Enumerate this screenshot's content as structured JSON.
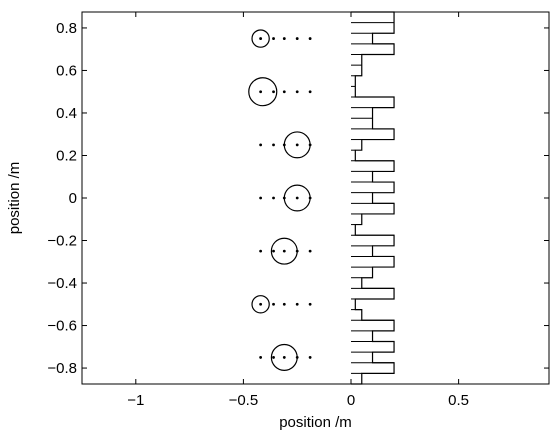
{
  "chart_data": {
    "type": "scatter",
    "title": "",
    "xlabel": "position /m",
    "ylabel": "position /m",
    "xlim": [
      -1.25,
      0.92
    ],
    "ylim": [
      -0.875,
      0.875
    ],
    "grid": false,
    "x_ticks": [
      -1,
      -0.5,
      0,
      0.5
    ],
    "x_tick_labels": [
      "−1",
      "−0.5",
      "0",
      "0.5"
    ],
    "y_ticks": [
      0.8,
      0.6,
      0.4,
      0.2,
      0,
      -0.2,
      -0.4,
      -0.6,
      -0.8
    ],
    "y_tick_labels": [
      "0.8",
      "0.6",
      "0.4",
      "0.2",
      "0",
      "−0.2",
      "−0.4",
      "−0.6",
      "−0.8"
    ],
    "circles": [
      {
        "x": -0.42,
        "y": 0.75,
        "r": 0.04
      },
      {
        "x": -0.41,
        "y": 0.5,
        "r": 0.065
      },
      {
        "x": -0.25,
        "y": 0.25,
        "r": 0.06
      },
      {
        "x": -0.25,
        "y": 0.0,
        "r": 0.06
      },
      {
        "x": -0.31,
        "y": -0.25,
        "r": 0.06
      },
      {
        "x": -0.42,
        "y": -0.5,
        "r": 0.04
      },
      {
        "x": -0.31,
        "y": -0.75,
        "r": 0.06
      }
    ],
    "dot_rows": [
      {
        "y": 0.75,
        "x": [
          -0.42,
          -0.36,
          -0.31,
          -0.25,
          -0.19
        ]
      },
      {
        "y": 0.5,
        "x": [
          -0.42,
          -0.36,
          -0.31,
          -0.25,
          -0.19
        ]
      },
      {
        "y": 0.25,
        "x": [
          -0.42,
          -0.36,
          -0.31,
          -0.25,
          -0.19
        ]
      },
      {
        "y": 0.0,
        "x": [
          -0.42,
          -0.36,
          -0.31,
          -0.25,
          -0.19
        ]
      },
      {
        "y": -0.25,
        "x": [
          -0.42,
          -0.36,
          -0.31,
          -0.25,
          -0.19
        ]
      },
      {
        "y": -0.5,
        "x": [
          -0.42,
          -0.36,
          -0.31,
          -0.25,
          -0.19
        ]
      },
      {
        "y": -0.75,
        "x": [
          -0.42,
          -0.36,
          -0.31,
          -0.25,
          -0.19
        ]
      }
    ],
    "profile": [
      {
        "y0": 0.825,
        "y1": 0.875,
        "x": 0.2
      },
      {
        "y0": 0.775,
        "y1": 0.825,
        "x": 0.2
      },
      {
        "y0": 0.725,
        "y1": 0.775,
        "x": 0.1
      },
      {
        "y0": 0.675,
        "y1": 0.725,
        "x": 0.2
      },
      {
        "y0": 0.625,
        "y1": 0.675,
        "x": 0.05
      },
      {
        "y0": 0.575,
        "y1": 0.625,
        "x": 0.05
      },
      {
        "y0": 0.525,
        "y1": 0.575,
        "x": 0.02
      },
      {
        "y0": 0.475,
        "y1": 0.525,
        "x": 0.02
      },
      {
        "y0": 0.425,
        "y1": 0.475,
        "x": 0.2
      },
      {
        "y0": 0.375,
        "y1": 0.425,
        "x": 0.1
      },
      {
        "y0": 0.325,
        "y1": 0.375,
        "x": 0.1
      },
      {
        "y0": 0.275,
        "y1": 0.325,
        "x": 0.2
      },
      {
        "y0": 0.225,
        "y1": 0.275,
        "x": 0.05
      },
      {
        "y0": 0.175,
        "y1": 0.225,
        "x": 0.02
      },
      {
        "y0": 0.125,
        "y1": 0.175,
        "x": 0.2
      },
      {
        "y0": 0.075,
        "y1": 0.125,
        "x": 0.1
      },
      {
        "y0": 0.025,
        "y1": 0.075,
        "x": 0.2
      },
      {
        "y0": -0.025,
        "y1": 0.025,
        "x": 0.1
      },
      {
        "y0": -0.075,
        "y1": -0.025,
        "x": 0.2
      },
      {
        "y0": -0.125,
        "y1": -0.075,
        "x": 0.05
      },
      {
        "y0": -0.175,
        "y1": -0.125,
        "x": 0.02
      },
      {
        "y0": -0.225,
        "y1": -0.175,
        "x": 0.2
      },
      {
        "y0": -0.275,
        "y1": -0.225,
        "x": 0.1
      },
      {
        "y0": -0.325,
        "y1": -0.275,
        "x": 0.2
      },
      {
        "y0": -0.375,
        "y1": -0.325,
        "x": 0.1
      },
      {
        "y0": -0.425,
        "y1": -0.375,
        "x": 0.05
      },
      {
        "y0": -0.475,
        "y1": -0.425,
        "x": 0.2
      },
      {
        "y0": -0.525,
        "y1": -0.475,
        "x": 0.02
      },
      {
        "y0": -0.575,
        "y1": -0.525,
        "x": 0.05
      },
      {
        "y0": -0.625,
        "y1": -0.575,
        "x": 0.2
      },
      {
        "y0": -0.675,
        "y1": -0.625,
        "x": 0.1
      },
      {
        "y0": -0.725,
        "y1": -0.675,
        "x": 0.2
      },
      {
        "y0": -0.775,
        "y1": -0.725,
        "x": 0.1
      },
      {
        "y0": -0.825,
        "y1": -0.775,
        "x": 0.2
      },
      {
        "y0": -0.875,
        "y1": -0.825,
        "x": 0.05
      }
    ],
    "colors": {
      "line": "#000000",
      "background": "#ffffff"
    }
  }
}
